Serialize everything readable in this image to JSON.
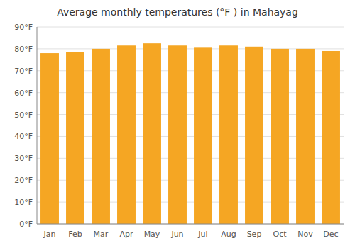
{
  "chart_data": {
    "type": "bar",
    "title": "Average monthly temperatures (°F ) in Mahayag",
    "categories": [
      "Jan",
      "Feb",
      "Mar",
      "Apr",
      "May",
      "Jun",
      "Jul",
      "Aug",
      "Sep",
      "Oct",
      "Nov",
      "Dec"
    ],
    "values": [
      78,
      78.5,
      80,
      81.5,
      82.5,
      81.5,
      80.5,
      81.5,
      81,
      80,
      80,
      79
    ],
    "color": "#F5A623",
    "ylim": [
      0,
      90
    ],
    "yticks": [
      {
        "value": 0,
        "label": "0°F"
      },
      {
        "value": 10,
        "label": "10°F"
      },
      {
        "value": 20,
        "label": "20°F"
      },
      {
        "value": 30,
        "label": "30°F"
      },
      {
        "value": 40,
        "label": "40°F"
      },
      {
        "value": 50,
        "label": "50°F"
      },
      {
        "value": 60,
        "label": "60°F"
      },
      {
        "value": 70,
        "label": "70°F"
      },
      {
        "value": 80,
        "label": "80°F"
      },
      {
        "value": 90,
        "label": "90°F"
      }
    ],
    "grid": true
  }
}
